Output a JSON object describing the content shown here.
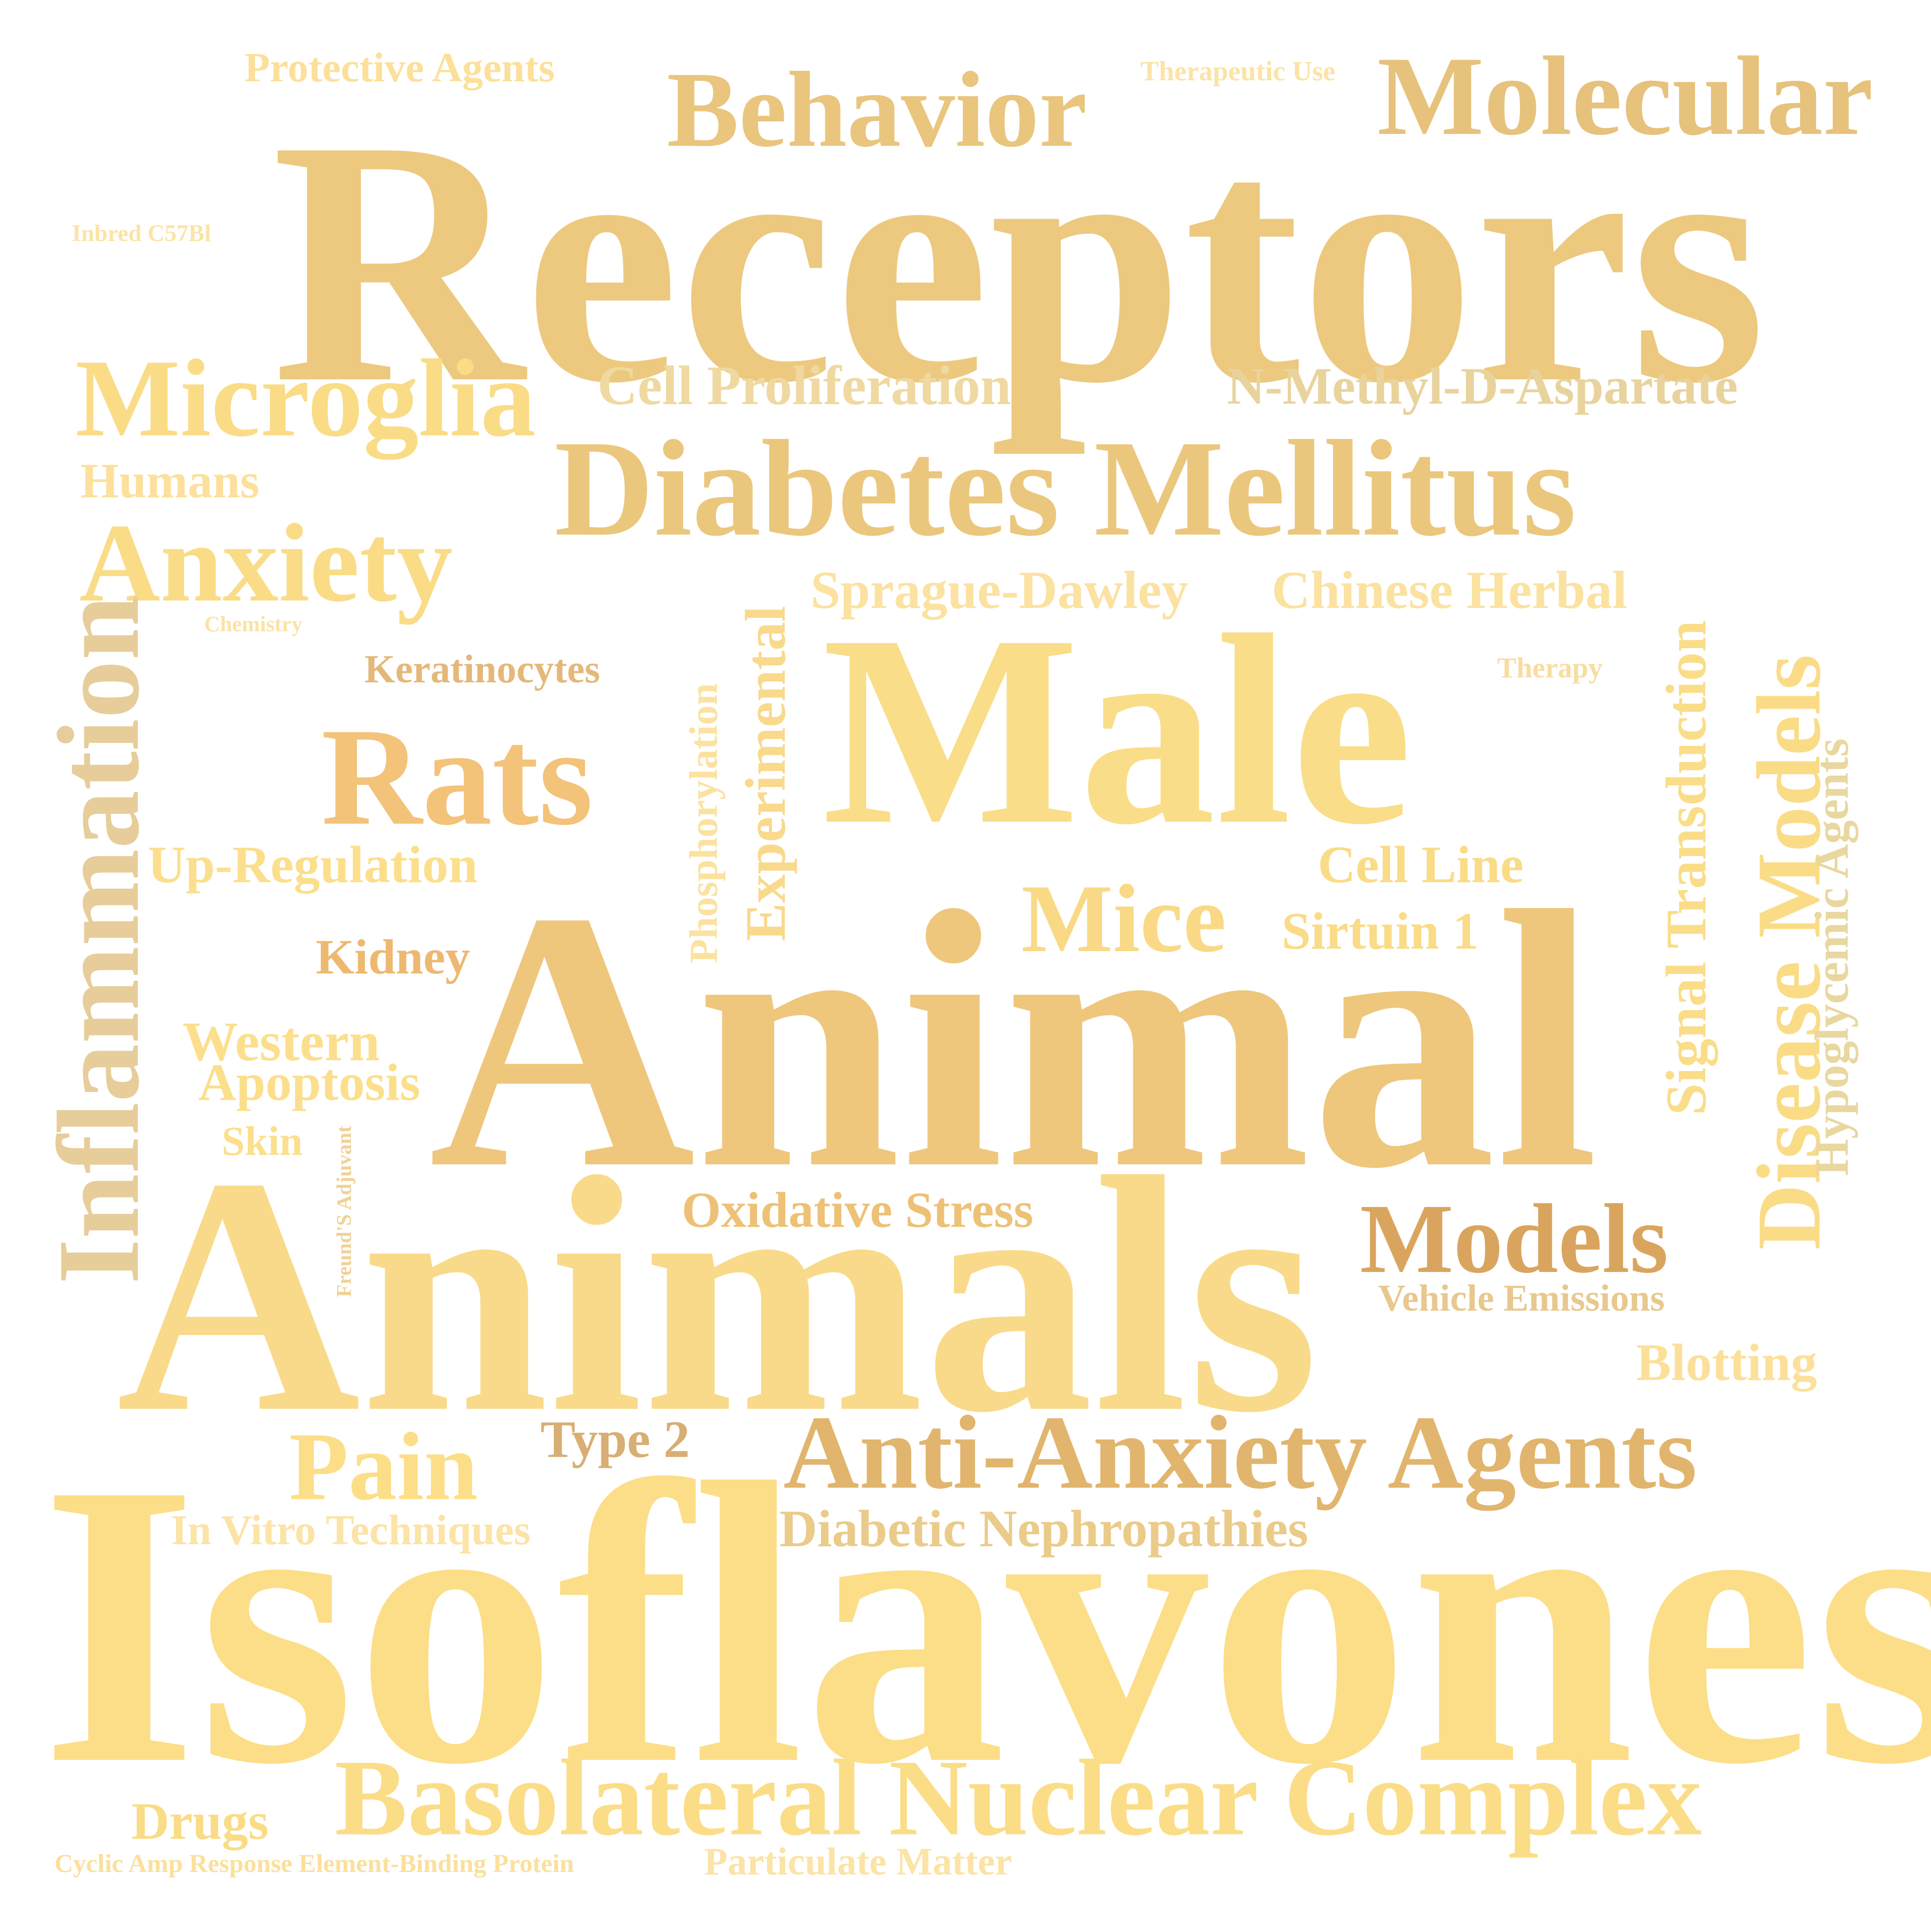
{
  "words": [
    {
      "id": "receptors",
      "text": "Receptors",
      "color": "#ECC97F"
    },
    {
      "id": "isoflavones",
      "text": "Isoflavones",
      "color": "#FCDE88"
    },
    {
      "id": "animals",
      "text": "Animals",
      "color": "#F8DA8A"
    },
    {
      "id": "animal",
      "text": "Animal",
      "color": "#EEC77D"
    },
    {
      "id": "male",
      "text": "Male",
      "color": "#FADD88"
    },
    {
      "id": "diabetes-mellitus",
      "text": "Diabetes Mellitus",
      "color": "#EBC77D"
    },
    {
      "id": "molecular",
      "text": "Molecular",
      "color": "#E6C27C"
    },
    {
      "id": "behavior",
      "text": "Behavior",
      "color": "#E9C57E"
    },
    {
      "id": "microglia",
      "text": "Microglia",
      "color": "#FADC87"
    },
    {
      "id": "anxiety",
      "text": "Anxiety",
      "color": "#FADC87"
    },
    {
      "id": "rats",
      "text": "Rats",
      "color": "#F3C37A"
    },
    {
      "id": "inflammation",
      "text": "Inflammation",
      "color": "#E6CD9A"
    },
    {
      "id": "anti-anxiety-agents",
      "text": "Anti-Anxiety Agents",
      "color": "#E1B56D"
    },
    {
      "id": "basolateral-nuclear-complex",
      "text": "Basolateral Nuclear Complex",
      "color": "#FBDD87"
    },
    {
      "id": "disease-models",
      "text": "Disease Models",
      "color": "#FADC87"
    },
    {
      "id": "models",
      "text": "Models",
      "color": "#D9A55E"
    },
    {
      "id": "mice",
      "text": "Mice",
      "color": "#F9D986"
    },
    {
      "id": "pain",
      "text": "Pain",
      "color": "#FCDE88"
    },
    {
      "id": "signal-transduction",
      "text": "Signal Transduction",
      "color": "#FADD88"
    },
    {
      "id": "hypoglycemic-agents",
      "text": "Hypoglycemic Agents",
      "color": "#E9D7A0"
    },
    {
      "id": "experimental",
      "text": "Experimental",
      "color": "#F9D98B"
    },
    {
      "id": "phosphorylation",
      "text": "Phosphorylation",
      "color": "#FBE2A0"
    },
    {
      "id": "cell-proliferation",
      "text": "Cell Proliferation",
      "color": "#EFD9A0"
    },
    {
      "id": "n-methyl-d-aspartate",
      "text": "N-Methyl-D-Aspartate",
      "color": "#E9D39D"
    },
    {
      "id": "sprague-dawley",
      "text": "Sprague-Dawley",
      "color": "#FBE2A0"
    },
    {
      "id": "chinese-herbal",
      "text": "Chinese Herbal",
      "color": "#FBE2A0"
    },
    {
      "id": "humans",
      "text": "Humans",
      "color": "#FCE09C"
    },
    {
      "id": "up-regulation",
      "text": "Up-Regulation",
      "color": "#FCDF8C"
    },
    {
      "id": "cell-line",
      "text": "Cell Line",
      "color": "#FADB86"
    },
    {
      "id": "sirtuin-1",
      "text": "Sirtuin 1",
      "color": "#FADB86"
    },
    {
      "id": "kidney",
      "text": "Kidney",
      "color": "#EDB870"
    },
    {
      "id": "western",
      "text": "Western",
      "color": "#FCDF8C"
    },
    {
      "id": "apoptosis",
      "text": "Apoptosis",
      "color": "#FCDF8C"
    },
    {
      "id": "skin",
      "text": "Skin",
      "color": "#FCDF8C"
    },
    {
      "id": "oxidative-stress",
      "text": "Oxidative Stress",
      "color": "#EDC176"
    },
    {
      "id": "vehicle-emissions",
      "text": "Vehicle Emissions",
      "color": "#E8C88E"
    },
    {
      "id": "blotting",
      "text": "Blotting",
      "color": "#FCE09A"
    },
    {
      "id": "type-2",
      "text": "Type 2",
      "color": "#D8AE74"
    },
    {
      "id": "diabetic-nephropathies",
      "text": "Diabetic Nephropathies",
      "color": "#EBCB8A"
    },
    {
      "id": "in-vitro-techniques",
      "text": "In Vitro Techniques",
      "color": "#FCE3A6"
    },
    {
      "id": "drugs",
      "text": "Drugs",
      "color": "#FADC87"
    },
    {
      "id": "particulate-matter",
      "text": "Particulate Matter",
      "color": "#FCE3A6"
    },
    {
      "id": "cyclic-amp",
      "text": "Cyclic Amp Response Element-Binding Protein",
      "color": "#FBE09C"
    },
    {
      "id": "protective-agents",
      "text": "Protective Agents",
      "color": "#FCE09A"
    },
    {
      "id": "therapeutic-use",
      "text": "Therapeutic Use",
      "color": "#FCE3A6"
    },
    {
      "id": "inbred-c57bl",
      "text": "Inbred C57Bl",
      "color": "#FCE3A6"
    },
    {
      "id": "keratinocytes",
      "text": "Keratinocytes",
      "color": "#E4B878"
    },
    {
      "id": "chemistry",
      "text": "Chemistry",
      "color": "#FCE3A6"
    },
    {
      "id": "therapy",
      "text": "Therapy",
      "color": "#F8DDA2"
    },
    {
      "id": "freunds-adjuvant",
      "text": "Freund'S Adjuvant",
      "color": "#F1D197"
    }
  ]
}
